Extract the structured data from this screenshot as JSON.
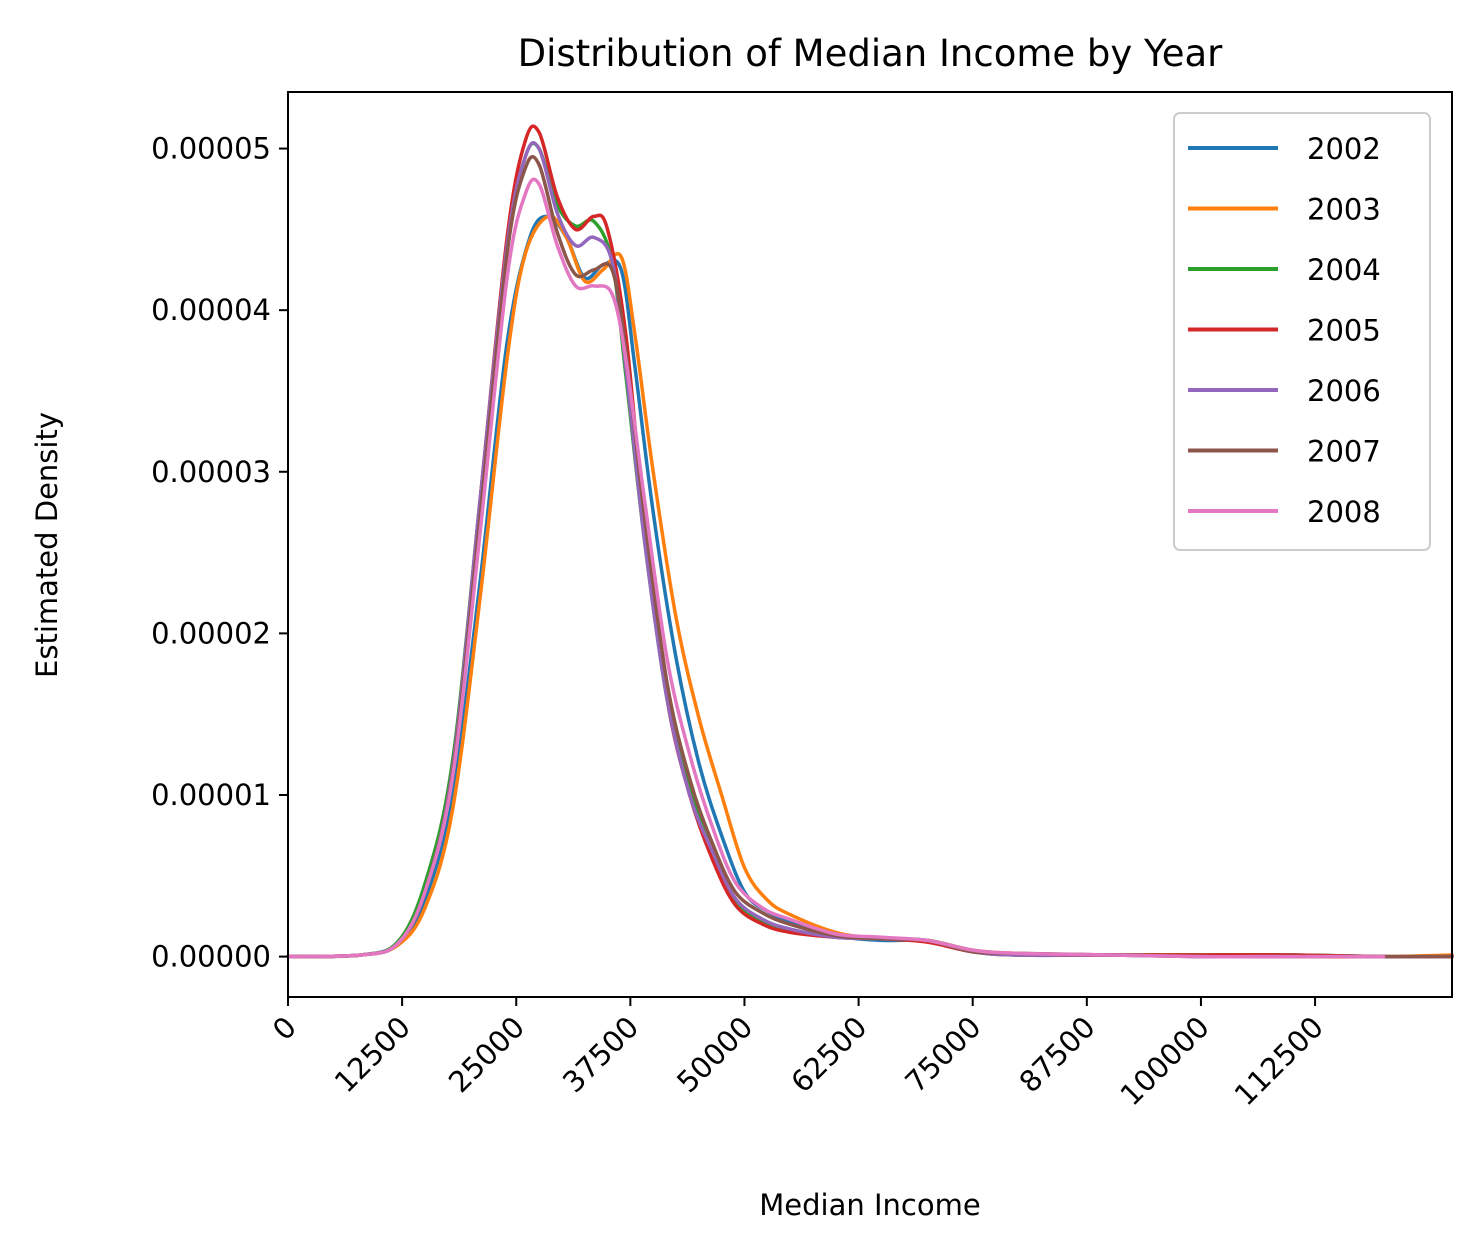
{
  "chart_data": {
    "type": "line",
    "title": "Distribution of Median Income by Year",
    "xlabel": "Median Income",
    "ylabel": "Estimated Density",
    "xlim": [
      0,
      127500
    ],
    "ylim": [
      -2.5e-06,
      5.35e-05
    ],
    "x_ticks": [
      0,
      12500,
      25000,
      37500,
      50000,
      62500,
      75000,
      87500,
      100000,
      112500
    ],
    "x_tick_labels": [
      "0",
      "12500",
      "25000",
      "37500",
      "50000",
      "62500",
      "75000",
      "87500",
      "100000",
      "112500"
    ],
    "y_ticks": [
      0,
      1e-05,
      2e-05,
      3e-05,
      4e-05,
      5e-05
    ],
    "y_tick_labels": [
      "0.00000",
      "0.00001",
      "0.00002",
      "0.00003",
      "0.00004",
      "0.00005"
    ],
    "grid": false,
    "legend_position": "top-right",
    "series": [
      {
        "name": "2002",
        "color": "#1f77b4",
        "x": [
          0,
          8000,
          12000,
          15000,
          18000,
          21000,
          24000,
          26500,
          28500,
          30500,
          32500,
          34500,
          36500,
          38000,
          40000,
          42500,
          45000,
          47500,
          50000,
          52500,
          55000,
          60000,
          65000,
          70000,
          75000,
          80000,
          90000,
          100000,
          110000,
          120000,
          127500
        ],
        "y": [
          0,
          1e-07,
          8e-07,
          3.5e-06,
          1e-05,
          2.3e-05,
          3.8e-05,
          4.45e-05,
          4.58e-05,
          4.45e-05,
          4.2e-05,
          4.28e-05,
          4.25e-05,
          3.65e-05,
          2.75e-05,
          1.85e-05,
          1.2e-05,
          7.5e-06,
          4e-06,
          2.8e-06,
          2.2e-06,
          1.3e-06,
          1e-06,
          1e-06,
          4e-07,
          1e-07,
          1e-07,
          1e-07,
          1e-07,
          0,
          0
        ]
      },
      {
        "name": "2003",
        "color": "#ff7f0e",
        "x": [
          0,
          8000,
          12000,
          15000,
          18000,
          21000,
          24000,
          26000,
          28500,
          30500,
          32500,
          34500,
          36500,
          38000,
          40000,
          42500,
          45000,
          47500,
          50000,
          52500,
          55000,
          60000,
          65000,
          70000,
          75000,
          80000,
          90000,
          100000,
          110000,
          120000,
          127500
        ],
        "y": [
          0,
          1e-07,
          7e-07,
          3e-06,
          9e-06,
          2.2e-05,
          3.7e-05,
          4.35e-05,
          4.58e-05,
          4.45e-05,
          4.18e-05,
          4.25e-05,
          4.33e-05,
          3.85e-05,
          3e-05,
          2.1e-05,
          1.48e-05,
          1e-05,
          5.5e-06,
          3.5e-06,
          2.6e-06,
          1.5e-06,
          1.1e-06,
          1e-06,
          4e-07,
          2e-07,
          1e-07,
          1e-07,
          0,
          0,
          1e-07
        ]
      },
      {
        "name": "2004",
        "color": "#2ca02c",
        "x": [
          0,
          8000,
          12000,
          15000,
          18000,
          21000,
          24000,
          26000,
          27500,
          29500,
          31500,
          33500,
          35500,
          37000,
          39000,
          41500,
          44000,
          46500,
          49000,
          52000,
          55000,
          60000,
          65000,
          70000,
          75000,
          80000,
          90000,
          100000,
          110000,
          120000,
          127500
        ],
        "y": [
          0,
          1e-07,
          9e-07,
          4.5e-06,
          1.2e-05,
          2.8e-05,
          4.4e-05,
          4.95e-05,
          5e-05,
          4.65e-05,
          4.52e-05,
          4.55e-05,
          4.3e-05,
          3.6e-05,
          2.6e-05,
          1.6e-05,
          1.05e-05,
          6.5e-06,
          3.5e-06,
          2.2e-06,
          1.6e-06,
          1.2e-06,
          1.1e-06,
          1e-06,
          3e-07,
          1e-07,
          1e-07,
          1e-07,
          1e-07,
          0,
          0
        ]
      },
      {
        "name": "2005",
        "color": "#d62728",
        "x": [
          0,
          8000,
          12000,
          15000,
          18000,
          21000,
          24000,
          26000,
          27500,
          29500,
          31500,
          33500,
          35000,
          37000,
          39000,
          41500,
          44000,
          46500,
          49000,
          52000,
          55000,
          60000,
          65000,
          70000,
          75000,
          80000,
          90000,
          100000,
          110000,
          120000,
          127500
        ],
        "y": [
          0,
          1e-07,
          8e-07,
          4e-06,
          1.15e-05,
          2.8e-05,
          4.45e-05,
          5.05e-05,
          5.1e-05,
          4.7e-05,
          4.5e-05,
          4.58e-05,
          4.5e-05,
          3.85e-05,
          2.7e-05,
          1.6e-05,
          1e-05,
          6e-06,
          3.2e-06,
          2e-06,
          1.5e-06,
          1.2e-06,
          1.1e-06,
          9e-07,
          3e-07,
          1e-07,
          1e-07,
          1e-07,
          1e-07,
          0,
          0
        ]
      },
      {
        "name": "2006",
        "color": "#9467bd",
        "x": [
          0,
          8000,
          12000,
          15000,
          18000,
          21000,
          24000,
          26000,
          27500,
          29500,
          31500,
          33500,
          35500,
          37000,
          39000,
          41500,
          44000,
          46500,
          49000,
          52000,
          55000,
          60000,
          65000,
          70000,
          75000,
          80000,
          90000,
          100000,
          110000,
          120000,
          127500
        ],
        "y": [
          0,
          1e-07,
          8e-07,
          4e-06,
          1.15e-05,
          2.8e-05,
          4.4e-05,
          4.95e-05,
          5e-05,
          4.6e-05,
          4.4e-05,
          4.45e-05,
          4.3e-05,
          3.65e-05,
          2.6e-05,
          1.6e-05,
          1e-05,
          6.5e-06,
          3.6e-06,
          2.3e-06,
          1.7e-06,
          1.2e-06,
          1.1e-06,
          1e-06,
          3e-07,
          1e-07,
          1e-07,
          0,
          0,
          0,
          0
        ]
      },
      {
        "name": "2007",
        "color": "#8c564b",
        "x": [
          0,
          8000,
          12000,
          15000,
          18000,
          21000,
          24000,
          26000,
          27500,
          29500,
          31500,
          33500,
          35500,
          37000,
          39000,
          41500,
          44000,
          46500,
          49000,
          52000,
          55000,
          60000,
          65000,
          70000,
          75000,
          80000,
          90000,
          100000,
          110000,
          120000,
          127500
        ],
        "y": [
          0,
          1e-07,
          8e-07,
          4e-06,
          1.12e-05,
          2.7e-05,
          4.35e-05,
          4.88e-05,
          4.9e-05,
          4.48e-05,
          4.22e-05,
          4.25e-05,
          4.25e-05,
          3.75e-05,
          2.75e-05,
          1.7e-05,
          1.1e-05,
          7e-06,
          4e-06,
          2.7e-06,
          2e-06,
          1.3e-06,
          1.1e-06,
          1e-06,
          3e-07,
          2e-07,
          1e-07,
          0,
          0,
          0,
          0
        ]
      },
      {
        "name": "2008",
        "color": "#e377c2",
        "x": [
          0,
          8000,
          12000,
          15000,
          18000,
          21000,
          24000,
          26000,
          27500,
          29500,
          31500,
          33500,
          35500,
          37000,
          39000,
          41500,
          44000,
          46500,
          49000,
          52000,
          55000,
          60000,
          65000,
          70000,
          75000,
          80000,
          90000,
          100000,
          110000,
          120000
        ],
        "y": [
          0,
          1e-07,
          8e-07,
          4e-06,
          1.1e-05,
          2.6e-05,
          4.2e-05,
          4.72e-05,
          4.78e-05,
          4.4e-05,
          4.15e-05,
          4.15e-05,
          4.1e-05,
          3.7e-05,
          2.85e-05,
          1.85e-05,
          1.25e-05,
          8e-06,
          4.6e-06,
          3e-06,
          2.3e-06,
          1.4e-06,
          1.2e-06,
          1e-06,
          4e-07,
          2e-07,
          1e-07,
          0,
          0,
          0
        ]
      }
    ]
  }
}
